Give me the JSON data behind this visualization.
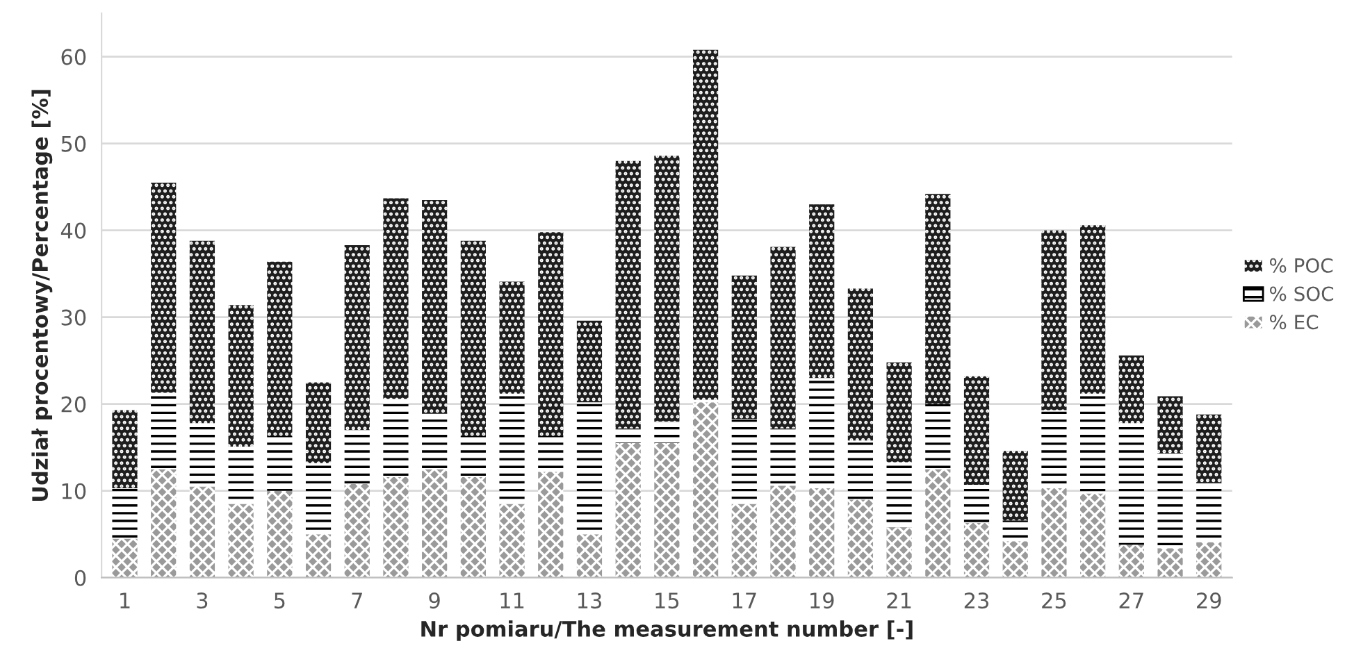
{
  "chart_data": {
    "type": "bar",
    "stacked": true,
    "xlabel": "Nr pomiaru/The measurement number [-]",
    "ylabel": "Udział procentowy/Percentage [%]",
    "categories": [
      "1",
      null,
      "3",
      null,
      "5",
      null,
      "7",
      null,
      "9",
      null,
      "11",
      null,
      "13",
      null,
      "15",
      null,
      "17",
      null,
      "19",
      null,
      "21",
      null,
      "23",
      null,
      "25",
      null,
      "27",
      null,
      "29"
    ],
    "series": [
      {
        "name": "% EC",
        "color": "#9a9a9a",
        "values": [
          4.5,
          12.5,
          10.5,
          8.5,
          10.0,
          5.0,
          10.8,
          11.6,
          12.5,
          11.6,
          8.5,
          12.2,
          5.0,
          15.5,
          15.5,
          20.2,
          8.5,
          10.6,
          10.3,
          9.0,
          5.8,
          12.5,
          6.3,
          4.2,
          10.3,
          9.7,
          3.8,
          3.4,
          4.1
        ]
      },
      {
        "name": "% SOC",
        "color": "#ffffff",
        "values": [
          5.8,
          8.8,
          7.3,
          6.6,
          6.3,
          8.2,
          6.2,
          9.0,
          6.4,
          4.7,
          12.7,
          4.1,
          15.2,
          1.7,
          2.5,
          0.3,
          9.8,
          6.6,
          12.7,
          6.8,
          7.5,
          7.5,
          4.4,
          2.4,
          9.0,
          11.5,
          14.0,
          10.9,
          6.8
        ]
      },
      {
        "name": "% POC",
        "color": "#1e1e1e",
        "values": [
          9.0,
          24.2,
          21.0,
          16.3,
          20.1,
          9.3,
          21.3,
          23.1,
          24.6,
          22.5,
          12.9,
          23.5,
          9.4,
          30.8,
          30.6,
          40.3,
          16.5,
          20.9,
          20.0,
          17.5,
          11.5,
          24.2,
          12.5,
          8.0,
          20.7,
          19.4,
          7.8,
          6.6,
          7.9
        ]
      }
    ],
    "ylim": [
      0,
      65
    ],
    "yticks": [
      0,
      10,
      20,
      30,
      40,
      50,
      60
    ],
    "grid": "y",
    "legend": "right"
  }
}
